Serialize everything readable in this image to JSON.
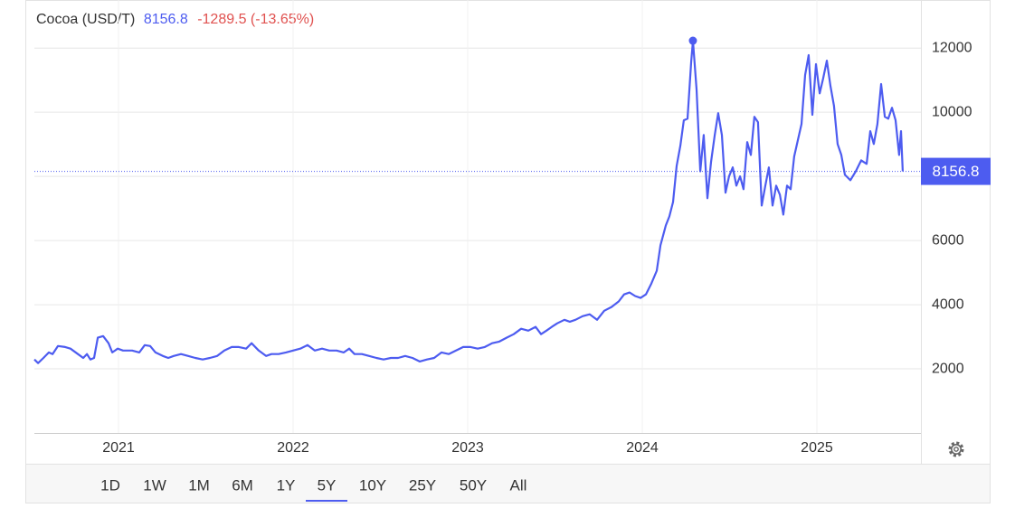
{
  "chart_data": {
    "type": "line",
    "title": "Cocoa (USD/T)",
    "subtitle": "-1289.5 (-13.65%)",
    "x": [
      2020.518,
      2020.539,
      2020.57,
      2020.601,
      2020.622,
      2020.653,
      2020.694,
      2020.725,
      2020.767,
      2020.798,
      2020.819,
      2020.839,
      2020.86,
      2020.881,
      2020.912,
      2020.943,
      2020.964,
      2020.995,
      2021.026,
      2021.078,
      2021.119,
      2021.15,
      2021.181,
      2021.212,
      2021.254,
      2021.285,
      2021.316,
      2021.358,
      2021.399,
      2021.44,
      2021.482,
      2021.523,
      2021.565,
      2021.606,
      2021.648,
      2021.689,
      2021.731,
      2021.762,
      2021.803,
      2021.845,
      2021.876,
      2021.917,
      2021.959,
      2022.0,
      2022.041,
      2022.083,
      2022.124,
      2022.166,
      2022.207,
      2022.249,
      2022.29,
      2022.321,
      2022.352,
      2022.394,
      2022.435,
      2022.477,
      2022.518,
      2022.56,
      2022.601,
      2022.642,
      2022.684,
      2022.725,
      2022.767,
      2022.808,
      2022.85,
      2022.891,
      2022.933,
      2022.974,
      2023.016,
      2023.057,
      2023.098,
      2023.14,
      2023.181,
      2023.223,
      2023.264,
      2023.306,
      2023.347,
      2023.389,
      2023.42,
      2023.451,
      2023.482,
      2023.513,
      2023.554,
      2023.585,
      2023.617,
      2023.658,
      2023.699,
      2023.741,
      2023.782,
      2023.824,
      2023.865,
      2023.896,
      2023.927,
      2023.959,
      2023.99,
      2024.021,
      2024.052,
      2024.083,
      2024.104,
      2024.135,
      2024.155,
      2024.176,
      2024.197,
      2024.218,
      2024.238,
      2024.259,
      2024.28,
      2024.29,
      2024.311,
      2024.332,
      2024.352,
      2024.373,
      2024.394,
      2024.415,
      2024.435,
      2024.456,
      2024.477,
      2024.497,
      2024.518,
      2024.539,
      2024.56,
      2024.58,
      2024.601,
      2024.622,
      2024.642,
      2024.663,
      2024.684,
      2024.705,
      2024.725,
      2024.746,
      2024.767,
      2024.788,
      2024.808,
      2024.829,
      2024.85,
      2024.87,
      2024.891,
      2024.912,
      2024.933,
      2024.953,
      2024.974,
      2024.995,
      2025.016,
      2025.036,
      2025.057,
      2025.078,
      2025.098,
      2025.119,
      2025.14,
      2025.161,
      2025.192,
      2025.223,
      2025.254,
      2025.285,
      2025.306,
      2025.326,
      2025.347,
      2025.368,
      2025.389,
      2025.409,
      2025.43,
      2025.451,
      2025.471,
      2025.482,
      2025.492
    ],
    "series": [
      {
        "color": "#4d5cf0",
        "values": [
          2290,
          2180,
          2340,
          2510,
          2460,
          2710,
          2680,
          2630,
          2460,
          2340,
          2460,
          2290,
          2340,
          2970,
          3020,
          2800,
          2510,
          2630,
          2570,
          2570,
          2510,
          2740,
          2710,
          2510,
          2400,
          2340,
          2400,
          2460,
          2400,
          2340,
          2290,
          2340,
          2400,
          2570,
          2680,
          2680,
          2630,
          2800,
          2570,
          2400,
          2460,
          2460,
          2510,
          2570,
          2630,
          2740,
          2570,
          2630,
          2570,
          2570,
          2510,
          2630,
          2460,
          2460,
          2400,
          2340,
          2290,
          2340,
          2340,
          2400,
          2340,
          2230,
          2290,
          2340,
          2510,
          2460,
          2570,
          2680,
          2680,
          2630,
          2680,
          2800,
          2850,
          2970,
          3080,
          3250,
          3190,
          3310,
          3080,
          3190,
          3310,
          3420,
          3530,
          3470,
          3530,
          3640,
          3700,
          3530,
          3810,
          3930,
          4100,
          4320,
          4380,
          4270,
          4210,
          4320,
          4660,
          5060,
          5850,
          6470,
          6750,
          7200,
          8330,
          8960,
          9750,
          9800,
          11550,
          12230,
          10710,
          8160,
          9290,
          7320,
          8450,
          9290,
          9970,
          9290,
          7490,
          8000,
          8280,
          7710,
          8000,
          7600,
          9070,
          8670,
          9860,
          9690,
          7090,
          7710,
          8280,
          7090,
          7710,
          7430,
          6810,
          7710,
          7600,
          8620,
          9120,
          9630,
          11160,
          11780,
          9920,
          11500,
          10590,
          11050,
          11610,
          10820,
          10200,
          9010,
          8670,
          8050,
          7880,
          8160,
          8500,
          8390,
          9410,
          9010,
          9630,
          10880,
          9860,
          9800,
          10140,
          9750,
          8670,
          9410,
          8156.8
        ]
      }
    ],
    "xlim": [
      2020.518,
      2025.596
    ],
    "xticks": [
      2021,
      2022,
      2023,
      2024,
      2025
    ],
    "ylim": [
      0,
      13500
    ],
    "yticks": [
      2000,
      4000,
      6000,
      8000,
      10000,
      12000
    ],
    "grid": true,
    "last_value_line": true,
    "mark_max": true,
    "range_buttons": [
      "1D",
      "1W",
      "1M",
      "6M",
      "1Y",
      "5Y",
      "10Y",
      "25Y",
      "50Y",
      "All"
    ],
    "selected_range": "5Y"
  }
}
